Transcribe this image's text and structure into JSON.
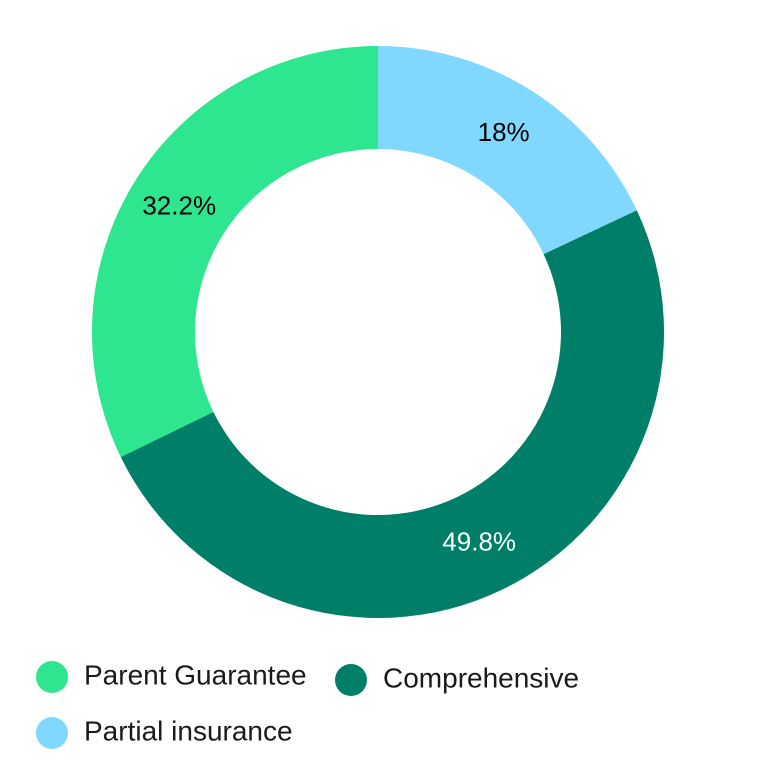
{
  "chart_data": {
    "type": "pie",
    "categories": [
      "Parent Guarantee",
      "Comprehensive",
      "Partial insurance"
    ],
    "values": [
      32.2,
      49.8,
      18
    ],
    "value_labels": [
      "32.2%",
      "49.8%",
      "18%"
    ],
    "colors": [
      "#2ee68f",
      "#007f68",
      "#80d8ff"
    ],
    "label_colors": [
      "#000000",
      "#ffffff",
      "#000000"
    ]
  }
}
